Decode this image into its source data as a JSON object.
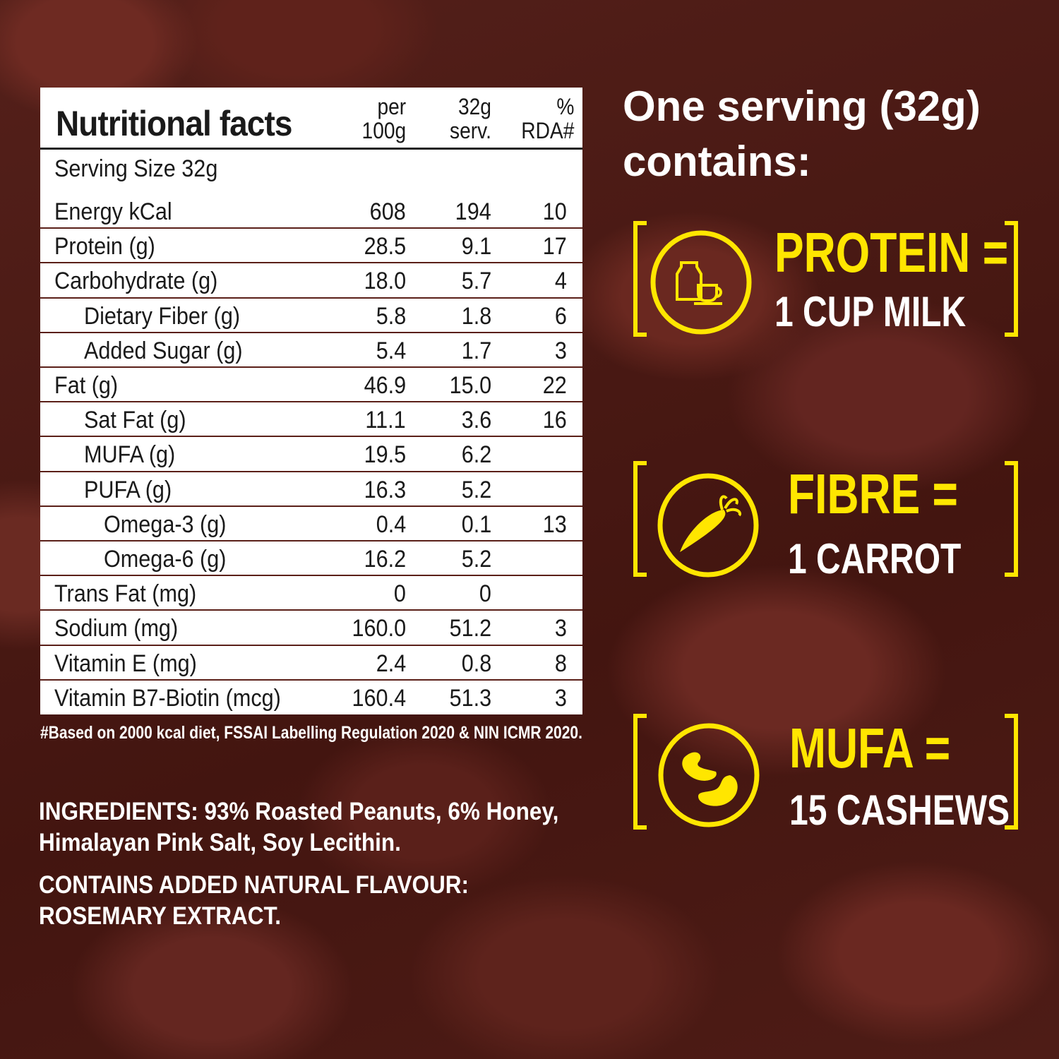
{
  "table": {
    "title": "Nutritional facts",
    "columns": [
      "per 100g",
      "32g serv.",
      "% RDA#"
    ],
    "col_lines": [
      [
        "per",
        "100g"
      ],
      [
        "32g",
        "serv."
      ],
      [
        "%",
        "RDA#"
      ]
    ],
    "serving_size": "Serving Size 32g",
    "rows": [
      {
        "label": "Energy kCal",
        "per100": "608",
        "serv": "194",
        "rda": "10",
        "indent": 0
      },
      {
        "label": "Protein (g)",
        "per100": "28.5",
        "serv": "9.1",
        "rda": "17",
        "indent": 0
      },
      {
        "label": "Carbohydrate (g)",
        "per100": "18.0",
        "serv": "5.7",
        "rda": "4",
        "indent": 0
      },
      {
        "label": "Dietary Fiber (g)",
        "per100": "5.8",
        "serv": "1.8",
        "rda": "6",
        "indent": 1
      },
      {
        "label": "Added Sugar (g)",
        "per100": "5.4",
        "serv": "1.7",
        "rda": "3",
        "indent": 1
      },
      {
        "label": "Fat (g)",
        "per100": "46.9",
        "serv": "15.0",
        "rda": "22",
        "indent": 0
      },
      {
        "label": "Sat Fat (g)",
        "per100": "11.1",
        "serv": "3.6",
        "rda": "16",
        "indent": 1
      },
      {
        "label": "MUFA (g)",
        "per100": "19.5",
        "serv": "6.2",
        "rda": "",
        "indent": 1
      },
      {
        "label": "PUFA (g)",
        "per100": "16.3",
        "serv": "5.2",
        "rda": "",
        "indent": 1
      },
      {
        "label": "Omega-3 (g)",
        "per100": "0.4",
        "serv": "0.1",
        "rda": "13",
        "indent": 2
      },
      {
        "label": "Omega-6 (g)",
        "per100": "16.2",
        "serv": "5.2",
        "rda": "",
        "indent": 2
      },
      {
        "label": "Trans Fat (mg)",
        "per100": "0",
        "serv": "0",
        "rda": "",
        "indent": 0
      },
      {
        "label": "Sodium (mg)",
        "per100": "160.0",
        "serv": "51.2",
        "rda": "3",
        "indent": 0
      },
      {
        "label": "Vitamin E (mg)",
        "per100": "2.4",
        "serv": "0.8",
        "rda": "8",
        "indent": 0
      },
      {
        "label": "Vitamin B7-Biotin (mcg)",
        "per100": "160.4",
        "serv": "51.3",
        "rda": "3",
        "indent": 0
      }
    ],
    "footnote": "#Based on 2000 kcal diet, FSSAI Labelling Regulation 2020 & NIN ICMR 2020."
  },
  "ingredients": {
    "line1": "INGREDIENTS: 93% Roasted Peanuts, 6% Honey,",
    "line2": "Himalayan Pink Salt, Soy Lecithin.",
    "flavour1": "CONTAINS ADDED NATURAL FLAVOUR:",
    "flavour2": "ROSEMARY EXTRACT."
  },
  "headline": {
    "line1": "One serving (32g)",
    "line2": "contains:"
  },
  "comparisons": [
    {
      "nutrient": "PROTEIN =",
      "equivalent": "1 CUP MILK",
      "icon": "milk-cup-icon"
    },
    {
      "nutrient": "FIBRE =",
      "equivalent": "1 CARROT",
      "icon": "carrot-icon"
    },
    {
      "nutrient": "MUFA =",
      "equivalent": "15 CASHEWS",
      "icon": "cashew-icon"
    }
  ],
  "colors": {
    "accent": "#ffe600",
    "background": "#4a1712",
    "row_line": "#5a1f18"
  }
}
